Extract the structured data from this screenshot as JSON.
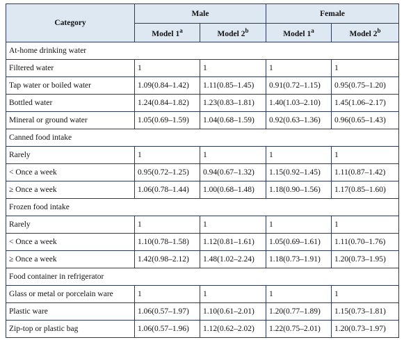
{
  "header": {
    "category": "Category",
    "male": "Male",
    "female": "Female",
    "models": [
      {
        "label": "Model 1",
        "sup": "a"
      },
      {
        "label": "Model 2",
        "sup": "b"
      },
      {
        "label": "Model 1",
        "sup": "a"
      },
      {
        "label": "Model 2",
        "sup": "b"
      }
    ]
  },
  "table": {
    "rows": [
      {
        "section": "At-home drinking water"
      },
      {
        "label": "Filtered water",
        "values": [
          "1",
          "1",
          "1",
          "1"
        ]
      },
      {
        "label": "Tap water or boiled water",
        "values": [
          "1.09(0.84–1.42)",
          "1.11(0.85–1.45)",
          "0.91(0.72–1.15)",
          "0.95(0.75–1.20)"
        ]
      },
      {
        "label": "Bottled water",
        "values": [
          "1.24(0.84–1.82)",
          "1.23(0.83–1.81)",
          "1.40(1.03–2.10)",
          "1.45(1.06–2.17)"
        ]
      },
      {
        "label": "Mineral or ground water",
        "values": [
          "1.05(0.69–1.59)",
          "1.04(0.68–1.59)",
          "0.92(0.63–1.36)",
          "0.96(0.65–1.43)"
        ]
      },
      {
        "section": "Canned food intake"
      },
      {
        "label": "Rarely",
        "values": [
          "1",
          "1",
          "1",
          "1"
        ]
      },
      {
        "label": "< Once a week",
        "values": [
          "0.95(0.72–1.25)",
          "0.94(0.67–1.32)",
          "1.15(0.92–1.45)",
          "1.11(0.87–1.42)"
        ]
      },
      {
        "label": "≥ Once a week",
        "values": [
          "1.06(0.78–1.44)",
          "1.00(0.68–1.48)",
          "1.18(0.90–1.56)",
          "1.17(0.85–1.60)"
        ]
      },
      {
        "section": "Frozen food intake"
      },
      {
        "label": "Rarely",
        "values": [
          "1",
          "1",
          "1",
          "1"
        ]
      },
      {
        "label": "< Once a week",
        "values": [
          "1.10(0.78–1.58)",
          "1.12(0.81–1.61)",
          "1.05(0.69–1.61)",
          "1.11(0.70–1.76)"
        ]
      },
      {
        "label": "≥ Once a week",
        "values": [
          "1.42(0.98–2.12)",
          "1.48(1.02–2.24)",
          "1.18(0.73–1.91)",
          "1.20(0.73–1.95)"
        ]
      },
      {
        "section": "Food container in refrigerator"
      },
      {
        "label": "Glass or metal or porcelain ware",
        "values": [
          "1",
          "1",
          "1",
          "1"
        ]
      },
      {
        "label": "Plastic ware",
        "values": [
          "1.06(0.57–1.97)",
          "1.10(0.61–2.01)",
          "1.20(0.77–1.89)",
          "1.15(0.73–1.81)"
        ]
      },
      {
        "label": "Zip-top or plastic bag",
        "values": [
          "1.06(0.57–1.96)",
          "1.12(0.62–2.02)",
          "1.22(0.75–2.01)",
          "1.20(0.73–1.97)"
        ]
      }
    ]
  }
}
